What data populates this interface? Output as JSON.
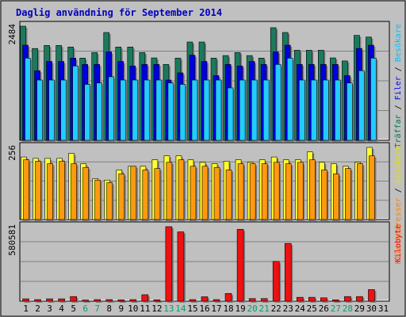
{
  "chart_data": {
    "type": "bar",
    "title": "Daglig användning för September 2014",
    "categories": [
      "1",
      "2",
      "3",
      "4",
      "5",
      "6",
      "7",
      "8",
      "9",
      "10",
      "11",
      "12",
      "13",
      "14",
      "15",
      "16",
      "17",
      "18",
      "19",
      "20",
      "21",
      "22",
      "23",
      "24",
      "25",
      "26",
      "27",
      "28",
      "29",
      "30",
      "31"
    ],
    "weekend_days": [
      "6",
      "7",
      "13",
      "14",
      "20",
      "21",
      "27",
      "28"
    ],
    "panels": [
      {
        "name": "top",
        "ymax": 2484,
        "ymax_label": "2484",
        "right_label_parts": [
          {
            "text": "Träffar",
            "color": "#007050"
          },
          {
            "text": " / ",
            "color": "#000000"
          },
          {
            "text": "Filer",
            "color": "#0000ff"
          },
          {
            "text": " / ",
            "color": "#000000"
          },
          {
            "text": "Besökare",
            "color": "#00c0ff"
          }
        ],
        "series": [
          {
            "name": "Träffar",
            "color": "#1b7a5e",
            "values": [
              2484,
              1998,
              2064,
              2064,
              2030,
              1788,
              1910,
              2346,
              2030,
              2030,
              1910,
              1793,
              1651,
              1788,
              2139,
              2139,
              1788,
              1844,
              1910,
              1844,
              1788,
              2450,
              2346,
              1960,
              1960,
              1960,
              1793,
              1727,
              2284,
              2247,
              0
            ]
          },
          {
            "name": "Filer",
            "color": "#0000dd",
            "values": [
              2070,
              1515,
              1716,
              1716,
              1788,
              1651,
              1651,
              1924,
              1716,
              1617,
              1651,
              1651,
              1311,
              1467,
              1852,
              1716,
              1407,
              1651,
              1617,
              1716,
              1651,
              1924,
              2070,
              1651,
              1651,
              1651,
              1651,
              1407,
              2000,
              2070,
              0
            ]
          },
          {
            "name": "Besökare",
            "color": "#22ccff",
            "values": [
              1788,
              1311,
              1311,
              1311,
              1617,
              1217,
              1247,
              1382,
              1311,
              1311,
              1311,
              1311,
              1247,
              1217,
              1311,
              1311,
              1311,
              1139,
              1311,
              1311,
              1311,
              1651,
              1788,
              1311,
              1311,
              1311,
              1311,
              1247,
              1515,
              1788,
              0
            ]
          }
        ]
      },
      {
        "name": "middle",
        "ymax": 256,
        "ymax_label": "256",
        "right_label_parts": [
          {
            "text": "Klientadresser",
            "color": "#ff8000"
          },
          {
            "text": " / ",
            "color": "#000000"
          },
          {
            "text": "Besökare",
            "color": "#e0e000"
          }
        ],
        "series": [
          {
            "name": "Besökare",
            "color": "#ffff30",
            "values": [
              222,
              217,
              217,
              217,
              235,
              198,
              145,
              140,
              176,
              189,
              189,
              212,
              226,
              226,
              212,
              203,
              198,
              207,
              212,
              203,
              212,
              222,
              212,
              212,
              240,
              203,
              198,
              189,
              203,
              256,
              0
            ]
          },
          {
            "name": "Klientadresser",
            "color": "#ff9a10",
            "values": [
              212,
              207,
              198,
              207,
              198,
              185,
              140,
              131,
              162,
              189,
              176,
              181,
              203,
              212,
              189,
              189,
              185,
              176,
              198,
              198,
              198,
              203,
              198,
              203,
              212,
              176,
              162,
              181,
              198,
              226,
              0
            ]
          }
        ]
      },
      {
        "name": "bottom",
        "ymax": 580581,
        "ymax_label": "580581",
        "right_label_parts": [
          {
            "text": "Kilobyte",
            "color": "#ff0000"
          }
        ],
        "series": [
          {
            "name": "Kilobyte",
            "color": "#ee1111",
            "values": [
              18000,
              12000,
              18000,
              18000,
              36000,
              8000,
              12000,
              12000,
              10000,
              12000,
              50000,
              10000,
              580581,
              540000,
              12000,
              34000,
              12000,
              60000,
              560000,
              20000,
              20000,
              310000,
              450000,
              30000,
              30000,
              26000,
              10000,
              36000,
              36000,
              90000,
              0
            ]
          }
        ]
      }
    ],
    "grid": true,
    "colors": {
      "background": "#c0c0c0",
      "title": "#0000c0",
      "weekday_label": "#000000",
      "weekend_label": "#00a070"
    }
  }
}
